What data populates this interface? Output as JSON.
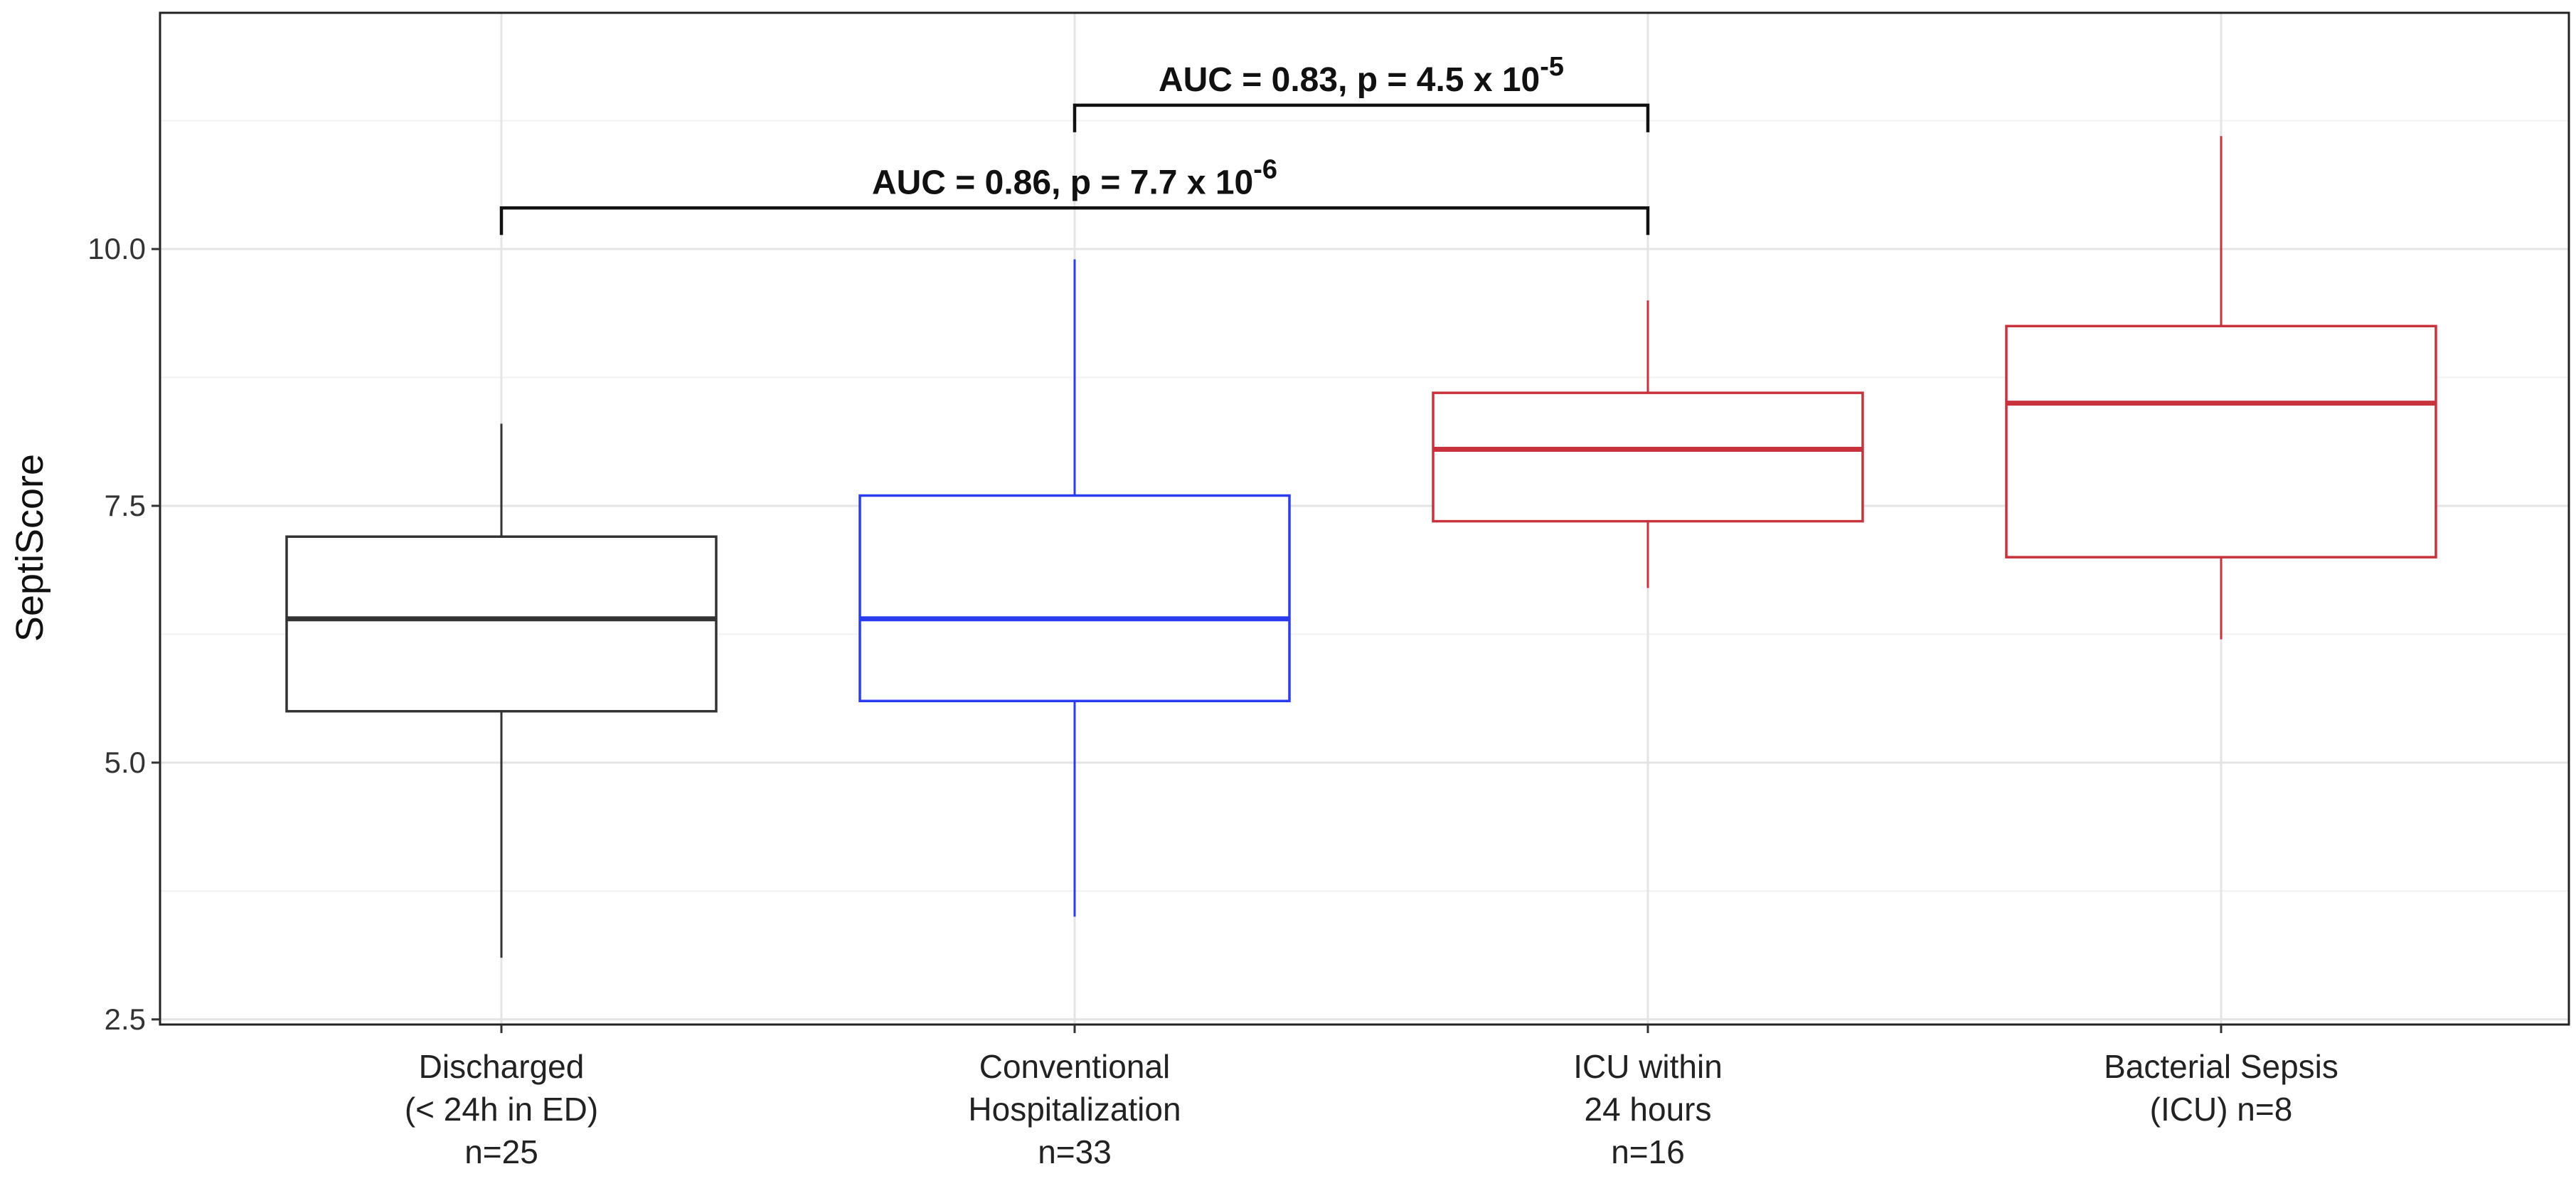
{
  "chart_data": {
    "type": "boxplot",
    "ylabel": "SeptiScore",
    "xlabel": "",
    "ylim": [
      2.45,
      12.3
    ],
    "yticks": [
      {
        "value": 2.5,
        "label": "2.5"
      },
      {
        "value": 5.0,
        "label": "5.0"
      },
      {
        "value": 7.5,
        "label": "7.5"
      },
      {
        "value": 10.0,
        "label": "10.0"
      }
    ],
    "minor_gridlines": [
      3.75,
      6.25,
      8.75,
      11.25
    ],
    "grid": true,
    "categories": [
      {
        "lines": [
          "Discharged",
          "(< 24h in ED)",
          "n=25"
        ],
        "color": "#333333",
        "whisker_low": 3.1,
        "q1": 5.5,
        "median": 6.4,
        "q3": 7.2,
        "whisker_high": 8.3
      },
      {
        "lines": [
          "Conventional",
          "Hospitalization",
          "n=33"
        ],
        "color": "#2a3cf0",
        "whisker_low": 3.5,
        "q1": 5.6,
        "median": 6.4,
        "q3": 7.6,
        "whisker_high": 9.9
      },
      {
        "lines": [
          "ICU within",
          "24 hours",
          "n=16"
        ],
        "color": "#c8323c",
        "whisker_low": 6.7,
        "q1": 7.35,
        "median": 8.05,
        "q3": 8.6,
        "whisker_high": 9.5
      },
      {
        "lines": [
          "Bacterial Sepsis",
          "(ICU)  n=8"
        ],
        "color": "#c8323c",
        "whisker_low": 6.2,
        "q1": 7.0,
        "median": 8.5,
        "q3": 9.25,
        "whisker_high": 11.1
      }
    ],
    "annotations": [
      {
        "from": 1,
        "to": 2,
        "y": 11.4,
        "text": "AUC = 0.83, p = 4.5 x 10",
        "exponent": "-5"
      },
      {
        "from": 0,
        "to": 2,
        "y": 10.4,
        "text": "AUC = 0.86, p = 7.7 x 10",
        "exponent": "-6"
      }
    ]
  }
}
